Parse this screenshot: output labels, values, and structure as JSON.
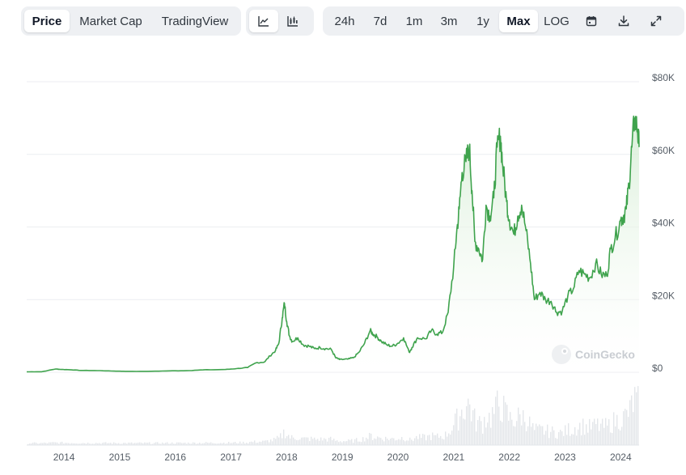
{
  "toolbar": {
    "view_tabs": [
      {
        "label": "Price",
        "active": true
      },
      {
        "label": "Market Cap",
        "active": false
      },
      {
        "label": "TradingView",
        "active": false
      }
    ],
    "chart_style_buttons": [
      {
        "icon": "line-chart-icon",
        "active": true
      },
      {
        "icon": "candlestick-chart-icon",
        "active": false
      }
    ],
    "ranges": [
      {
        "label": "24h",
        "active": false
      },
      {
        "label": "7d",
        "active": false
      },
      {
        "label": "1m",
        "active": false
      },
      {
        "label": "3m",
        "active": false
      },
      {
        "label": "1y",
        "active": false
      },
      {
        "label": "Max",
        "active": true
      },
      {
        "label": "LOG",
        "active": false
      }
    ],
    "action_icons": [
      "calendar-icon",
      "download-icon",
      "fullscreen-icon"
    ]
  },
  "watermark": "CoinGecko",
  "colors": {
    "line": "#3fa34d",
    "fill_top": "#d7eed6",
    "volume": "#e3e6ea",
    "grid": "#eceef1",
    "active_bg": "#ffffff",
    "seg_bg": "#eef0f3"
  },
  "chart_data": {
    "type": "area",
    "title": "",
    "xlabel": "",
    "ylabel": "",
    "y_tick_labels": [
      "$0",
      "$20K",
      "$40K",
      "$60K",
      "$80K"
    ],
    "y_ticks": [
      0,
      20000,
      40000,
      60000,
      80000
    ],
    "ylim": [
      0,
      80000
    ],
    "x_tick_labels": [
      "2014",
      "2015",
      "2016",
      "2017",
      "2018",
      "2019",
      "2020",
      "2021",
      "2022",
      "2023",
      "2024"
    ],
    "x_ticks": [
      2014,
      2015,
      2016,
      2017,
      2018,
      2019,
      2020,
      2021,
      2022,
      2023,
      2024
    ],
    "xlim": [
      2013.33,
      2024.33
    ],
    "grid": true,
    "legend": "none",
    "series": [
      {
        "x": [
          2013.33,
          2013.6,
          2013.85,
          2013.92,
          2014.1,
          2014.3,
          2014.6,
          2014.9,
          2015.1,
          2015.5,
          2015.9,
          2016.2,
          2016.5,
          2016.9,
          2017.1,
          2017.3,
          2017.45,
          2017.6,
          2017.7,
          2017.8,
          2017.86,
          2017.92,
          2017.96,
          2018.0,
          2018.05,
          2018.1,
          2018.2,
          2018.3,
          2018.4,
          2018.5,
          2018.6,
          2018.7,
          2018.8,
          2018.88,
          2018.95,
          2019.1,
          2019.2,
          2019.3,
          2019.4,
          2019.5,
          2019.55,
          2019.62,
          2019.7,
          2019.8,
          2019.9,
          2020.0,
          2020.1,
          2020.2,
          2020.25,
          2020.35,
          2020.5,
          2020.6,
          2020.7,
          2020.8,
          2020.9,
          2021.0,
          2021.05,
          2021.1,
          2021.15,
          2021.22,
          2021.28,
          2021.33,
          2021.38,
          2021.45,
          2021.52,
          2021.58,
          2021.65,
          2021.72,
          2021.78,
          2021.84,
          2021.88,
          2021.95,
          2022.0,
          2022.08,
          2022.15,
          2022.22,
          2022.3,
          2022.38,
          2022.45,
          2022.55,
          2022.65,
          2022.75,
          2022.85,
          2022.95,
          2023.05,
          2023.15,
          2023.25,
          2023.35,
          2023.45,
          2023.55,
          2023.65,
          2023.75,
          2023.82,
          2023.9,
          2024.0,
          2024.05,
          2024.1,
          2024.15,
          2024.2,
          2024.25,
          2024.3,
          2024.33
        ],
        "y": [
          120,
          130,
          900,
          800,
          700,
          500,
          450,
          320,
          250,
          240,
          380,
          420,
          650,
          750,
          1000,
          1300,
          2600,
          2800,
          4500,
          6000,
          8000,
          15000,
          19000,
          14000,
          10000,
          8500,
          9500,
          7500,
          7200,
          6500,
          6800,
          6500,
          6300,
          4000,
          3500,
          3600,
          4000,
          5500,
          8000,
          11500,
          10500,
          9800,
          8500,
          7500,
          7200,
          8000,
          9500,
          5500,
          6800,
          9500,
          9200,
          11500,
          10500,
          11000,
          16500,
          29000,
          38000,
          45000,
          55000,
          58000,
          62000,
          50000,
          36000,
          34000,
          31000,
          46000,
          43000,
          48000,
          62000,
          65000,
          57000,
          47000,
          42000,
          38000,
          43000,
          46000,
          39000,
          30000,
          20000,
          22000,
          20000,
          19500,
          16500,
          16800,
          21000,
          23000,
          28000,
          27000,
          26000,
          30000,
          27000,
          26500,
          34000,
          37000,
          42000,
          43000,
          45000,
          52000,
          62000,
          70000,
          67000,
          62000
        ]
      }
    ],
    "volume_note": "relative trading volume bars below price area"
  }
}
